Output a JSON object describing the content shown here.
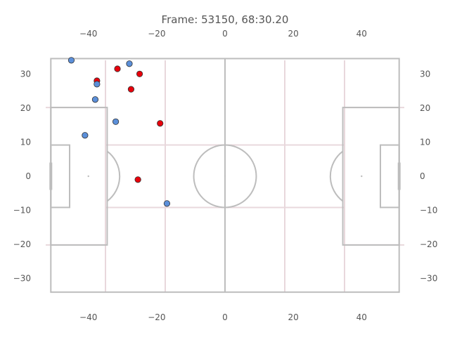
{
  "chart_data": {
    "type": "scatter",
    "title": "Frame: 53150, 68:30.20",
    "xlabel": "",
    "ylabel": "",
    "xlim": [
      -52.5,
      52.5
    ],
    "ylim": [
      -34,
      34
    ],
    "grid": false,
    "x_ticks": [
      "−40",
      "−20",
      "0",
      "20",
      "40"
    ],
    "x_tick_values": [
      -40,
      -20,
      0,
      20,
      40
    ],
    "y_ticks": [
      "30",
      "20",
      "10",
      "0",
      "−10",
      "−20",
      "−30"
    ],
    "y_tick_values": [
      30,
      20,
      10,
      0,
      -10,
      -20,
      -30
    ],
    "series": [
      {
        "color": "#e8000b",
        "points": [
          {
            "x": -37.5,
            "y": 28.0
          },
          {
            "x": -31.5,
            "y": 31.5
          },
          {
            "x": -25.0,
            "y": 30.0
          },
          {
            "x": -27.5,
            "y": 25.5
          },
          {
            "x": -19.0,
            "y": 15.5
          },
          {
            "x": -25.5,
            "y": -1.0
          }
        ]
      },
      {
        "color": "#5b8fd9",
        "points": [
          {
            "x": -45.0,
            "y": 34.0
          },
          {
            "x": -28.0,
            "y": 33.0
          },
          {
            "x": -37.5,
            "y": 27.0
          },
          {
            "x": -38.0,
            "y": 22.5
          },
          {
            "x": -32.0,
            "y": 16.0
          },
          {
            "x": -41.0,
            "y": 12.0
          },
          {
            "x": -17.0,
            "y": -8.0
          }
        ]
      }
    ]
  }
}
